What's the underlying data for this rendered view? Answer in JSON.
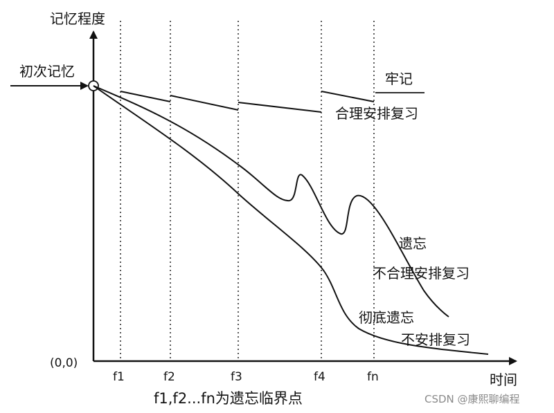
{
  "y_axis_label": "记忆程度",
  "x_axis_label": "时间",
  "origin_label": "(0,0)",
  "initial_memory_label": "初次记忆",
  "ticks": [
    "f1",
    "f2",
    "f3",
    "f4",
    "fn"
  ],
  "curves": {
    "remember": "牢记",
    "reasonable_review": "合理安排复习",
    "forget": "遗忘",
    "unreasonable_review": "不合理安排复习",
    "total_forget": "彻底遗忘",
    "no_review": "不安排复习"
  },
  "caption": "f1,f2...fn为遗忘临界点",
  "watermark": "CSDN @康熙聊编程",
  "colors": {
    "ink": "#111111",
    "background": "#ffffff",
    "watermark": "#8a8a8a"
  }
}
